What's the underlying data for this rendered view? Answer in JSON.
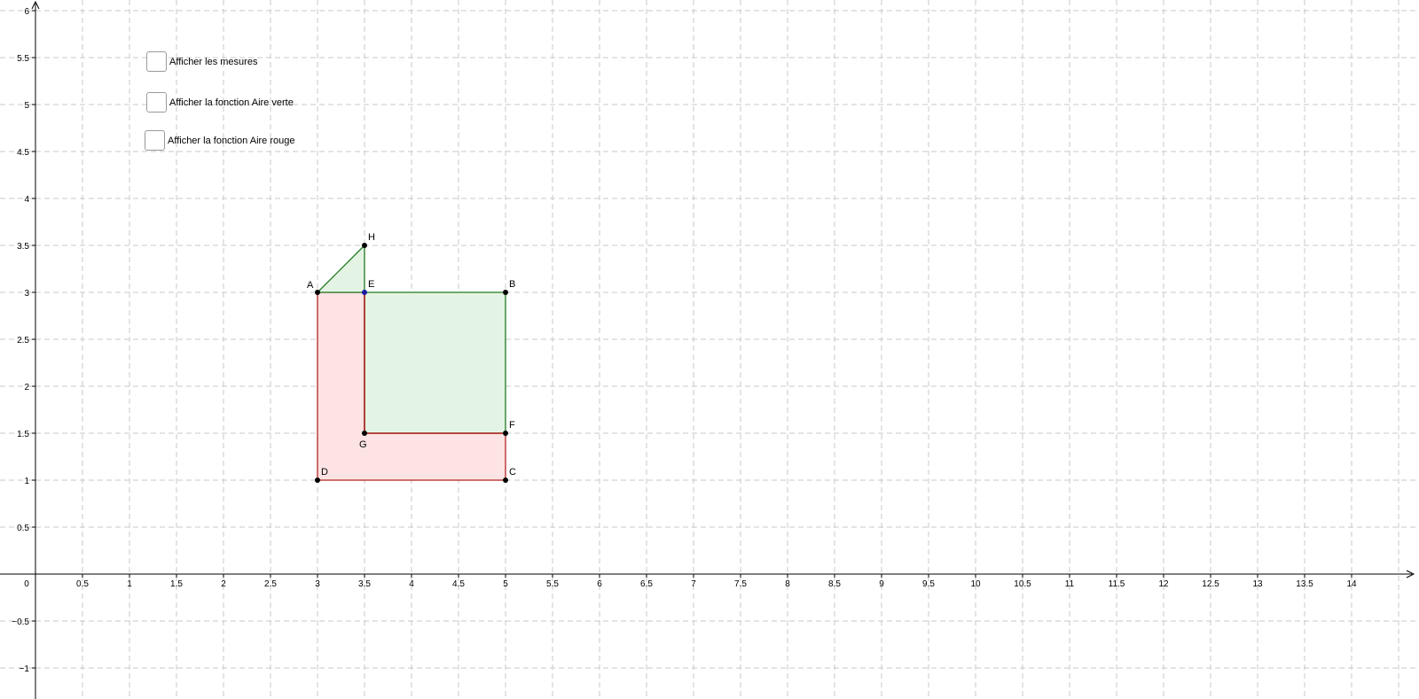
{
  "checkboxes": [
    {
      "label": "Afficher les mesures",
      "checked": false
    },
    {
      "label": "Afficher la fonction Aire verte",
      "checked": false
    },
    {
      "label": "Afficher la fonction Aire rouge",
      "checked": false
    }
  ],
  "axes": {
    "x_ticks": [
      "0.5",
      "1",
      "1.5",
      "2",
      "2.5",
      "3",
      "3.5",
      "4",
      "4.5",
      "5",
      "5.5",
      "6",
      "6.5",
      "7",
      "7.5",
      "8",
      "8.5",
      "9",
      "9.5",
      "10",
      "10.5",
      "11",
      "11.5",
      "12",
      "12.5",
      "13",
      "13.5",
      "14"
    ],
    "y_ticks": [
      "−1",
      "−0.5",
      "0.5",
      "1",
      "1.5",
      "2",
      "2.5",
      "3",
      "3.5",
      "4",
      "4.5",
      "5",
      "5.5",
      "6"
    ],
    "origin_label": "0",
    "x_range": [
      -0.4,
      14.8
    ],
    "y_range": [
      -1.2,
      6.1
    ],
    "grid": true
  },
  "points": [
    {
      "name": "A",
      "x": 3,
      "y": 3,
      "color": "#000000"
    },
    {
      "name": "B",
      "x": 5,
      "y": 3,
      "color": "#000000"
    },
    {
      "name": "C",
      "x": 5,
      "y": 1,
      "color": "#000000"
    },
    {
      "name": "D",
      "x": 3,
      "y": 1,
      "color": "#000000"
    },
    {
      "name": "E",
      "x": 3.5,
      "y": 3,
      "color": "#1a1aa6"
    },
    {
      "name": "F",
      "x": 5,
      "y": 1.5,
      "color": "#000000"
    },
    {
      "name": "G",
      "x": 3.5,
      "y": 1.5,
      "color": "#000000"
    },
    {
      "name": "H",
      "x": 3.5,
      "y": 3.5,
      "color": "#000000"
    }
  ],
  "polygons": [
    {
      "name": "red-region",
      "vertices": [
        "A",
        "E",
        "G",
        "F",
        "C",
        "D"
      ],
      "stroke": "#b22222",
      "fill": "#fde3e3"
    },
    {
      "name": "green-rectangle",
      "vertices": [
        "E",
        "B",
        "F",
        "G"
      ],
      "stroke": "#1f7a1f",
      "fill": "#e4f4e4"
    },
    {
      "name": "green-triangle",
      "vertices": [
        "A",
        "H",
        "E"
      ],
      "stroke": "#1f7a1f",
      "fill": "#e4f4e4"
    }
  ]
}
